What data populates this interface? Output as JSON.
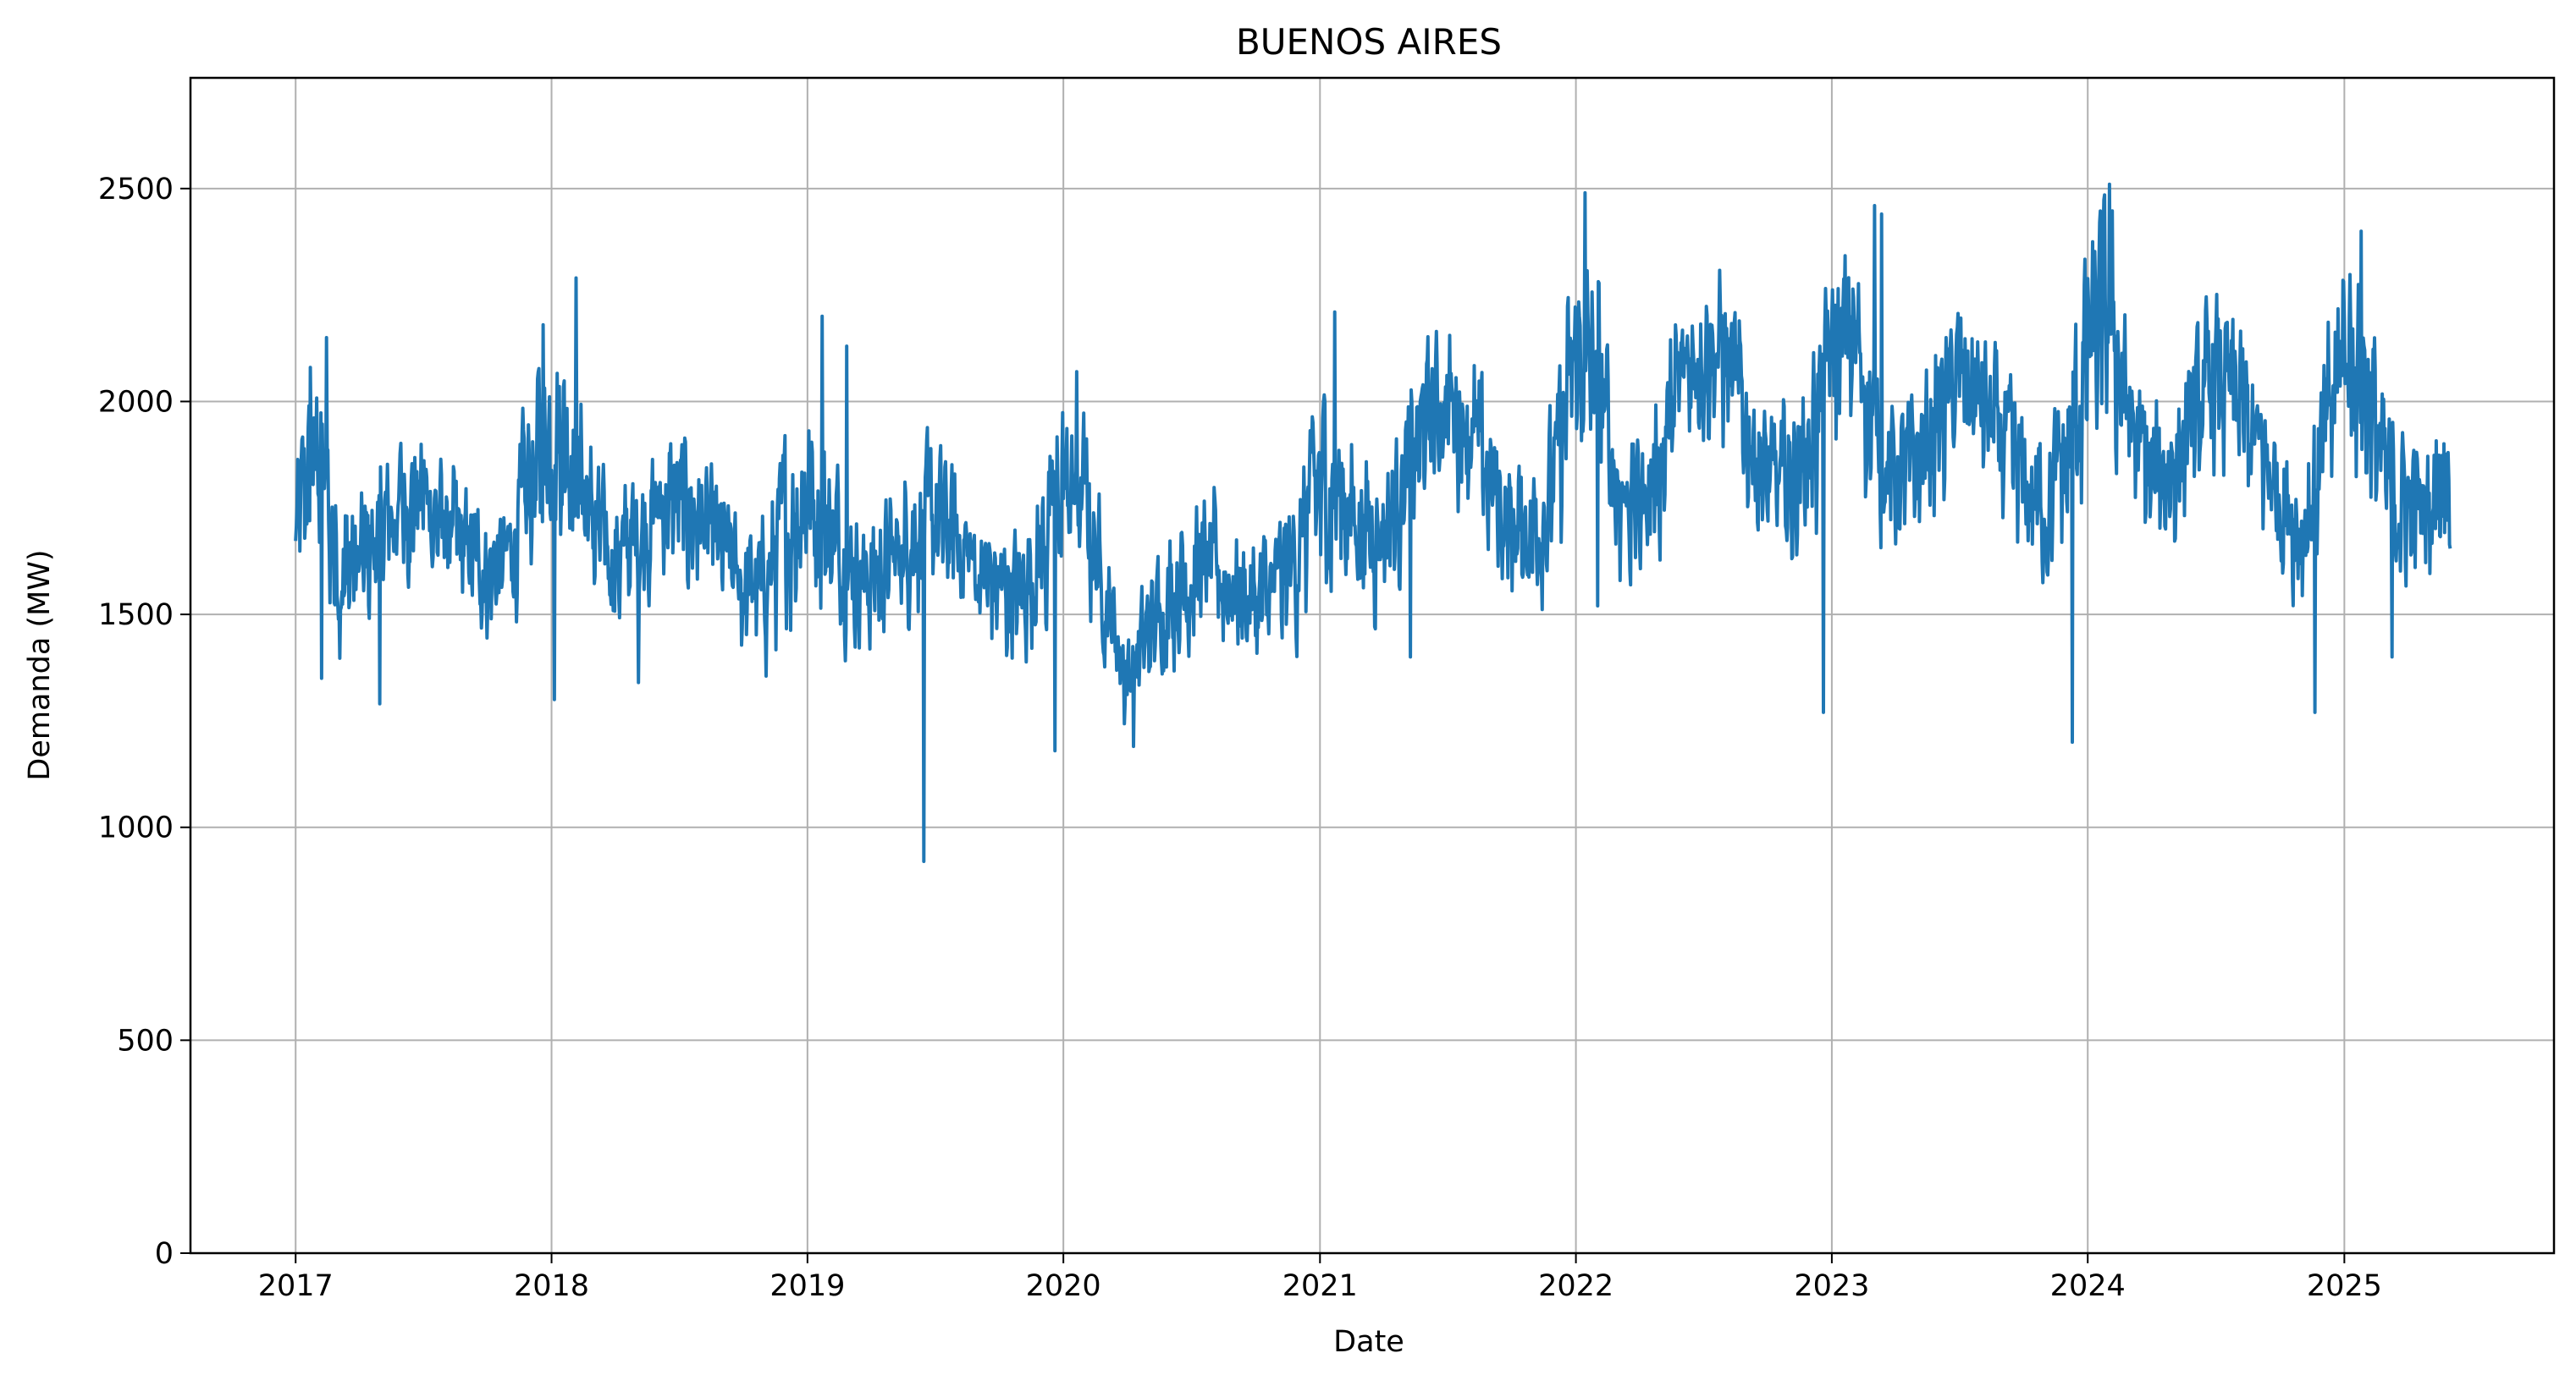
{
  "chart_data": {
    "type": "line",
    "title": "BUENOS AIRES",
    "xlabel": "Date",
    "ylabel": "Demanda (MW)",
    "xlim": [
      "2016-08-04",
      "2025-10-27"
    ],
    "ylim": [
      0,
      2760
    ],
    "x_ticks": [
      "2017",
      "2018",
      "2019",
      "2020",
      "2021",
      "2022",
      "2023",
      "2024",
      "2025"
    ],
    "y_ticks": [
      "0",
      "500",
      "1000",
      "1500",
      "2000",
      "2500"
    ],
    "grid": true,
    "line_color": "#1f77b4",
    "grid_color": "#b0b0b0",
    "series": [
      {
        "x": [
          "2017-01-01",
          "2017-02-01",
          "2017-03-01",
          "2017-04-01",
          "2017-05-01",
          "2017-06-01",
          "2017-07-01",
          "2017-08-01",
          "2017-09-01",
          "2017-10-01",
          "2017-11-01",
          "2017-12-01",
          "2018-01-01",
          "2018-02-01",
          "2018-03-01",
          "2018-04-01",
          "2018-05-01",
          "2018-06-01",
          "2018-07-01",
          "2018-08-01",
          "2018-09-01",
          "2018-10-01",
          "2018-11-01",
          "2018-12-01",
          "2019-01-01",
          "2019-02-01",
          "2019-03-01",
          "2019-04-01",
          "2019-05-01",
          "2019-06-01",
          "2019-07-01",
          "2019-08-01",
          "2019-09-01",
          "2019-10-01",
          "2019-11-01",
          "2019-12-01",
          "2020-01-01",
          "2020-02-01",
          "2020-03-01",
          "2020-04-01",
          "2020-05-01",
          "2020-06-01",
          "2020-07-01",
          "2020-08-01",
          "2020-09-01",
          "2020-10-01",
          "2020-11-01",
          "2020-12-01",
          "2021-01-01",
          "2021-02-01",
          "2021-03-01",
          "2021-04-01",
          "2021-05-01",
          "2021-06-01",
          "2021-07-01",
          "2021-08-01",
          "2021-09-01",
          "2021-10-01",
          "2021-11-01",
          "2021-12-01",
          "2022-01-01",
          "2022-02-01",
          "2022-03-01",
          "2022-04-01",
          "2022-05-01",
          "2022-06-01",
          "2022-07-01",
          "2022-08-01",
          "2022-09-01",
          "2022-10-01",
          "2022-11-01",
          "2022-12-01",
          "2023-01-01",
          "2023-02-01",
          "2023-03-01",
          "2023-04-01",
          "2023-05-01",
          "2023-06-01",
          "2023-07-01",
          "2023-08-01",
          "2023-09-01",
          "2023-10-01",
          "2023-11-01",
          "2023-12-01",
          "2024-01-01",
          "2024-02-01",
          "2024-03-01",
          "2024-04-01",
          "2024-05-01",
          "2024-06-01",
          "2024-07-01",
          "2024-08-01",
          "2024-09-01",
          "2024-10-01",
          "2024-11-01",
          "2024-12-01",
          "2025-01-01",
          "2025-02-01",
          "2025-03-01",
          "2025-04-01",
          "2025-05-01",
          "2025-06-01"
        ],
        "y": [
          1700,
          1880,
          1620,
          1600,
          1680,
          1760,
          1780,
          1700,
          1650,
          1600,
          1620,
          1800,
          1950,
          1900,
          1700,
          1620,
          1680,
          1750,
          1760,
          1720,
          1650,
          1560,
          1560,
          1700,
          1800,
          1700,
          1620,
          1580,
          1620,
          1700,
          1720,
          1680,
          1600,
          1560,
          1550,
          1650,
          1800,
          1750,
          1550,
          1350,
          1450,
          1550,
          1600,
          1600,
          1560,
          1520,
          1560,
          1650,
          1800,
          1780,
          1700,
          1700,
          1800,
          1950,
          2000,
          1950,
          1800,
          1700,
          1700,
          1800,
          2100,
          2050,
          1800,
          1750,
          1850,
          2050,
          2150,
          2100,
          1950,
          1800,
          1800,
          1900,
          2100,
          2150,
          1950,
          1800,
          1850,
          1950,
          2050,
          2000,
          1900,
          1800,
          1750,
          1850,
          2100,
          2200,
          1950,
          1800,
          1850,
          1950,
          2050,
          2000,
          1880,
          1780,
          1700,
          1850,
          2150,
          2050,
          1800,
          1750,
          1750,
          1900
        ],
        "amplitude": [
          170,
          230,
          200,
          180,
          170,
          170,
          170,
          160,
          150,
          150,
          160,
          220,
          250,
          250,
          180,
          160,
          170,
          170,
          170,
          160,
          150,
          150,
          160,
          220,
          250,
          220,
          170,
          150,
          170,
          180,
          180,
          170,
          160,
          150,
          150,
          200,
          250,
          230,
          170,
          120,
          150,
          170,
          180,
          170,
          160,
          160,
          160,
          200,
          250,
          230,
          180,
          170,
          170,
          180,
          200,
          190,
          170,
          160,
          170,
          210,
          270,
          250,
          190,
          170,
          180,
          200,
          210,
          200,
          180,
          170,
          180,
          220,
          260,
          260,
          200,
          170,
          180,
          190,
          200,
          190,
          180,
          170,
          170,
          220,
          280,
          270,
          200,
          180,
          180,
          190,
          200,
          190,
          180,
          170,
          170,
          220,
          270,
          250,
          190,
          170,
          170,
          200
        ],
        "extremes": [
          {
            "x": "2017-01-22",
            "y": 2080
          },
          {
            "x": "2017-02-14",
            "y": 2150
          },
          {
            "x": "2017-02-07",
            "y": 1350
          },
          {
            "x": "2017-05-01",
            "y": 1290
          },
          {
            "x": "2017-12-20",
            "y": 2180
          },
          {
            "x": "2018-01-05",
            "y": 1300
          },
          {
            "x": "2018-02-05",
            "y": 2290
          },
          {
            "x": "2018-05-05",
            "y": 1340
          },
          {
            "x": "2019-01-22",
            "y": 2200
          },
          {
            "x": "2019-02-26",
            "y": 2130
          },
          {
            "x": "2019-06-16",
            "y": 920
          },
          {
            "x": "2019-12-20",
            "y": 1180
          },
          {
            "x": "2020-01-20",
            "y": 2070
          },
          {
            "x": "2020-04-10",
            "y": 1190
          },
          {
            "x": "2021-01-22",
            "y": 2210
          },
          {
            "x": "2021-05-10",
            "y": 1400
          },
          {
            "x": "2022-01-14",
            "y": 2490
          },
          {
            "x": "2022-02-01",
            "y": 1520
          },
          {
            "x": "2022-12-20",
            "y": 1270
          },
          {
            "x": "2023-03-03",
            "y": 2460
          },
          {
            "x": "2023-03-13",
            "y": 2440
          },
          {
            "x": "2023-12-10",
            "y": 1200
          },
          {
            "x": "2024-02-01",
            "y": 2510
          },
          {
            "x": "2024-11-20",
            "y": 1270
          },
          {
            "x": "2025-01-25",
            "y": 2400
          },
          {
            "x": "2025-03-10",
            "y": 1400
          }
        ]
      }
    ]
  }
}
